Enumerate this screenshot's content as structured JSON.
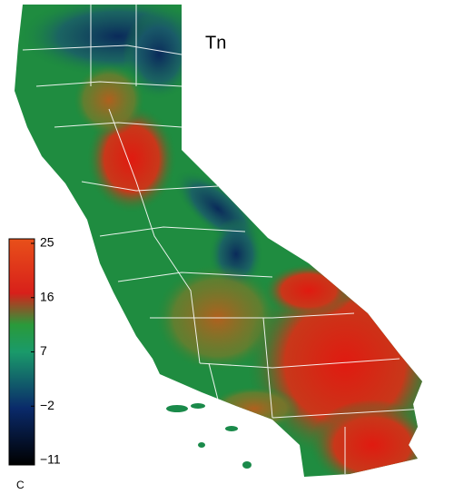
{
  "map": {
    "title": "Tn",
    "colorbar": {
      "unit": "C",
      "lim": [
        -11,
        25
      ],
      "ticks": [
        25,
        16,
        7,
        {
          "value": -2,
          "label": "−2"
        },
        {
          "value": -11,
          "label": "−11"
        }
      ]
    }
  }
}
